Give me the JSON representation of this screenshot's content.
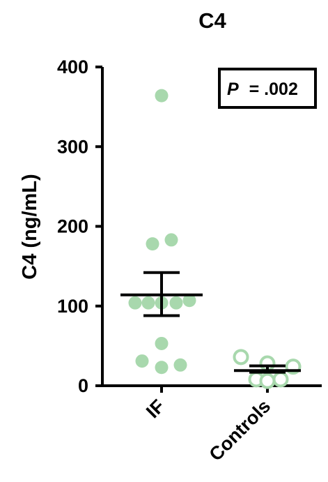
{
  "chart_data": {
    "type": "scatter",
    "title": "C4",
    "xlabel": "",
    "ylabel": "C4 (ng/mL)",
    "ylim": [
      0,
      400
    ],
    "yticks": [
      0,
      100,
      200,
      300,
      400
    ],
    "categories": [
      "IF",
      "Controls"
    ],
    "grid": false,
    "legend": "none",
    "annotation": {
      "label": "P",
      "text": "= .002",
      "placement": "top-right"
    },
    "colors": {
      "points": "#a8d8ad",
      "axis": "#000000",
      "text": "#000000"
    },
    "series": [
      {
        "category": "IF",
        "marker": "filled-circle",
        "points": [
          364,
          183,
          178,
          107,
          104,
          104,
          104,
          104,
          53,
          31,
          26,
          23
        ],
        "mean": 114,
        "sem_upper": 142,
        "sem_lower": 88
      },
      {
        "category": "Controls",
        "marker": "open-circle",
        "points": [
          36,
          28,
          24,
          8,
          8,
          6
        ],
        "mean": 19,
        "sem_upper": 25,
        "sem_lower": 17
      }
    ]
  }
}
